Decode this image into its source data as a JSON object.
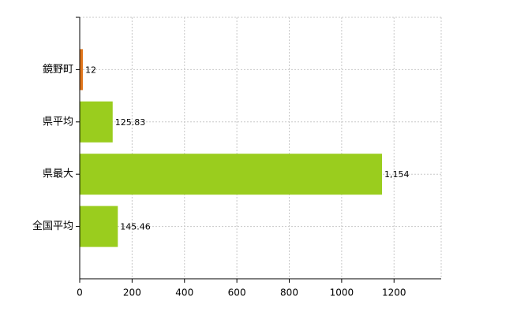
{
  "chart_data": {
    "type": "bar",
    "orientation": "horizontal",
    "categories": [
      "鏡野町",
      "県平均",
      "県最大",
      "全国平均"
    ],
    "values": [
      12,
      125.83,
      1154,
      145.46
    ],
    "value_labels": [
      "12",
      "125.83",
      "1,154",
      "145.46"
    ],
    "colors": [
      "#e0761c",
      "#9acd1e",
      "#9acd1e",
      "#9acd1e"
    ],
    "xlim": [
      0,
      1380
    ],
    "xticks": [
      0,
      200,
      400,
      600,
      800,
      1000,
      1200
    ],
    "grid": true
  }
}
